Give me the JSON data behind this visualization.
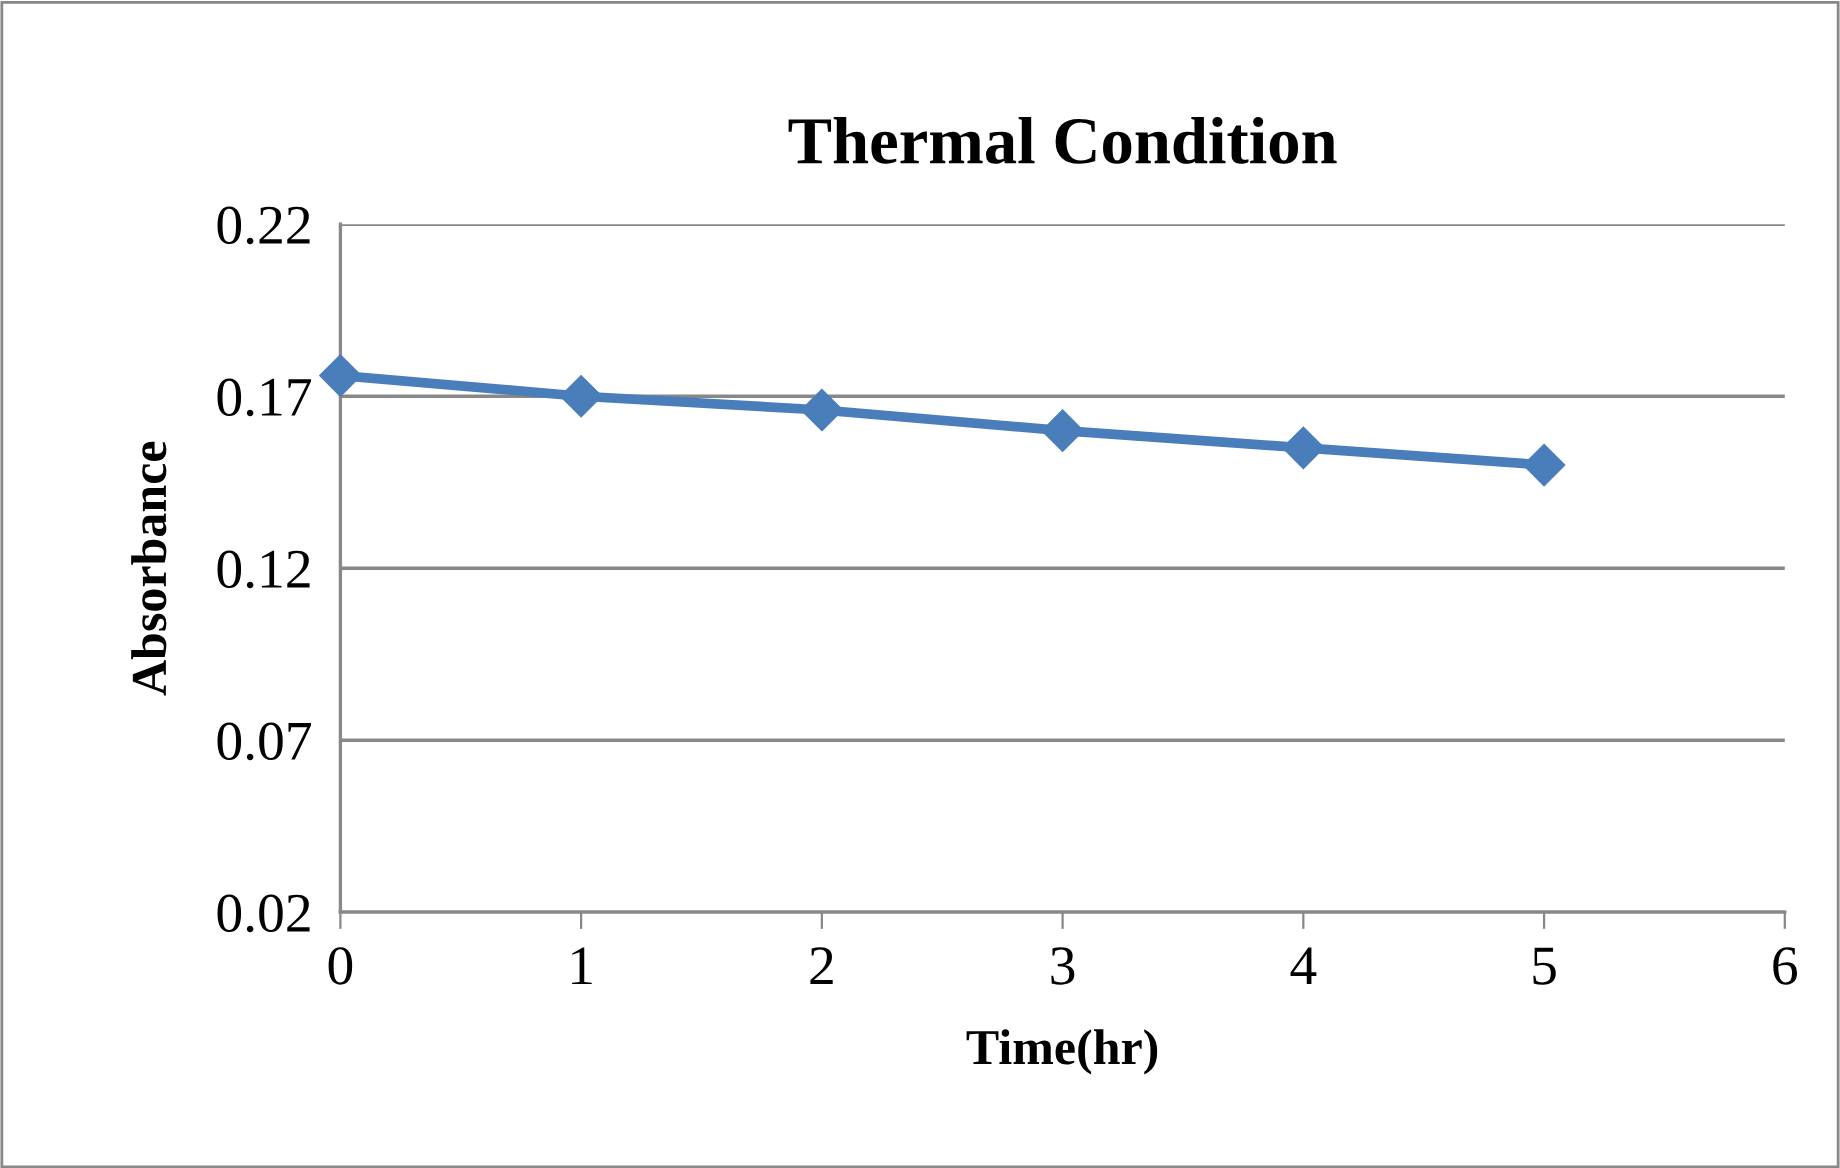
{
  "chart_data": {
    "type": "line",
    "title": "Thermal Condition",
    "xlabel": "Time(hr)",
    "ylabel": "Absorbance",
    "x": [
      0,
      1,
      2,
      3,
      4,
      5
    ],
    "series": [
      {
        "color": "#4a7ebb",
        "values": [
          0.176,
          0.17,
          0.166,
          0.16,
          0.155,
          0.15
        ]
      }
    ],
    "xlim": [
      0,
      6
    ],
    "xticks": [
      0,
      1,
      2,
      3,
      4,
      5,
      6
    ],
    "ylim": [
      0.02,
      0.22
    ],
    "yticks": [
      0.02,
      0.07,
      0.12,
      0.17,
      0.22
    ],
    "grid": "y",
    "marker": "diamond",
    "line_style": "solid"
  }
}
